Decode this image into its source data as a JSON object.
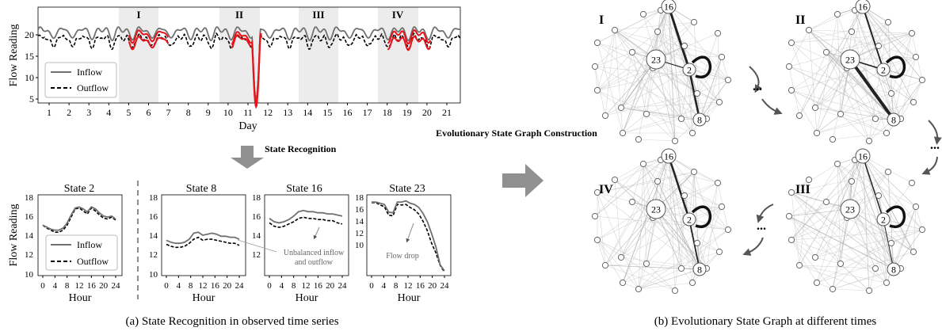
{
  "colors": {
    "inflow": "#707070",
    "outflow": "#000000",
    "state_highlight": "#e8141c",
    "shade": "#ececec",
    "arrow": "#909090",
    "graph_edge": "#c8c8c8"
  },
  "top_chart": {
    "ylabel": "Flow Reading",
    "xlabel": "Day",
    "yticks": [
      "20",
      "15",
      "10",
      "5"
    ],
    "xticks": [
      "1",
      "2",
      "3",
      "4",
      "5",
      "6",
      "7",
      "8",
      "9",
      "10",
      "11",
      "12",
      "13",
      "14",
      "15",
      "16",
      "17",
      "18",
      "19",
      "20",
      "21"
    ],
    "periods": [
      "I",
      "II",
      "III",
      "IV"
    ],
    "legend": {
      "inflow": "Inflow",
      "outflow": "Outflow"
    }
  },
  "recognition_label": "State Recognition",
  "construction_label": "Evolutionary State Graph Construction",
  "panels": [
    {
      "title": "State 2",
      "yticks": [
        "18",
        "16",
        "14",
        "12",
        "10"
      ],
      "xticks": [
        "0",
        "4",
        "8",
        "12",
        "16",
        "20",
        "24"
      ],
      "xlabel": "Hour",
      "ylabel": "Flow Reading"
    },
    {
      "title": "State 8",
      "yticks": [
        "18",
        "16",
        "14",
        "12",
        "10"
      ],
      "xticks": [
        "0",
        "4",
        "8",
        "12",
        "16",
        "20",
        "24"
      ],
      "xlabel": "Hour"
    },
    {
      "title": "State 16",
      "yticks": [
        "18",
        "16",
        "14",
        "12"
      ],
      "xticks": [
        "0",
        "4",
        "8",
        "12",
        "16",
        "20",
        "24"
      ],
      "xlabel": "Hour"
    },
    {
      "title": "State 23",
      "yticks": [
        "18",
        "16",
        "14",
        "12",
        "10"
      ],
      "xticks": [
        "0",
        "4",
        "8",
        "12",
        "16",
        "20",
        "24"
      ],
      "xlabel": "Hour"
    }
  ],
  "bottom_legend": {
    "inflow": "Inflow",
    "outflow": "Outflow"
  },
  "annotations": {
    "unbalanced_1": "Unbalanced inflow",
    "unbalanced_2": "and outflow",
    "drop": "Flow drop"
  },
  "caption_a": "(a) State Recognition in observed time series",
  "caption_b": "(b) Evolutionary State Graph at different times",
  "graphs": [
    {
      "label": "I",
      "nodes": {
        "n16": "16",
        "n23": "23",
        "n2": "2",
        "n8": "8"
      }
    },
    {
      "label": "II",
      "nodes": {
        "n16": "16",
        "n23": "23",
        "n2": "2",
        "n8": "8"
      }
    },
    {
      "label": "IV",
      "nodes": {
        "n16": "16",
        "n23": "23",
        "n2": "2",
        "n8": "8"
      }
    },
    {
      "label": "III",
      "nodes": {
        "n16": "16",
        "n23": "23",
        "n2": "2",
        "n8": "8"
      }
    }
  ],
  "ellipsis": "..."
}
